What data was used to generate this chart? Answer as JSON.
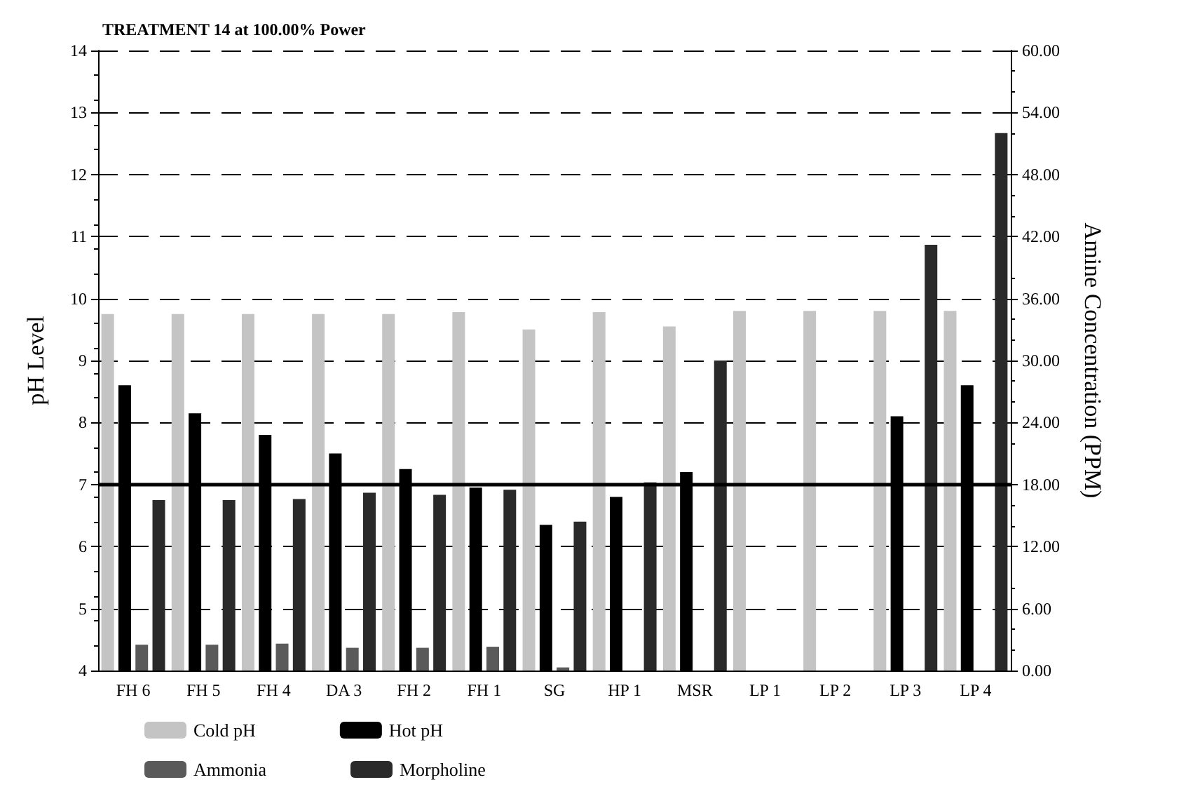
{
  "chart_data": {
    "type": "bar",
    "title": "TREATMENT 14 at 100.00% Power",
    "ylabel": "pH Level",
    "y2label": "Amine Concentration (PPM)",
    "categories": [
      "FH 6",
      "FH 5",
      "FH 4",
      "DA 3",
      "FH 2",
      "FH 1",
      "SG",
      "HP 1",
      "MSR",
      "LP 1",
      "LP 2",
      "LP 3",
      "LP 4"
    ],
    "series": [
      {
        "name": "Cold pH",
        "color": "#c4c4c4",
        "values": [
          9.75,
          9.75,
          9.75,
          9.75,
          9.75,
          9.78,
          9.5,
          9.78,
          9.55,
          9.8,
          9.8,
          9.8,
          9.8
        ]
      },
      {
        "name": "Hot pH",
        "color": "#000000",
        "values": [
          8.6,
          8.15,
          7.8,
          7.5,
          7.25,
          6.95,
          6.35,
          6.8,
          7.2,
          null,
          null,
          8.1,
          8.6
        ]
      },
      {
        "name": "Ammonia",
        "color": "#5a5a5a",
        "axis": "y2",
        "values": [
          2.5,
          2.5,
          2.6,
          2.2,
          2.2,
          2.3,
          0.3,
          null,
          null,
          null,
          null,
          null,
          null
        ]
      },
      {
        "name": "Morpholine",
        "color": "#2a2a2a",
        "axis": "y2",
        "values": [
          16.5,
          16.5,
          16.6,
          17.2,
          17,
          17.5,
          14.4,
          18.2,
          30,
          null,
          null,
          41.2,
          52
        ]
      }
    ],
    "ylim": [
      4,
      14
    ],
    "yticks": [
      4,
      5,
      6,
      7,
      8,
      9,
      10,
      11,
      12,
      13,
      14
    ],
    "y2lim": [
      0,
      60
    ],
    "y2ticks": [
      {
        "value": 0,
        "label": "0.00"
      },
      {
        "value": 6,
        "label": "6.00"
      },
      {
        "value": 12,
        "label": "12.00"
      },
      {
        "value": 18,
        "label": "18.00"
      },
      {
        "value": 24,
        "label": "24.00"
      },
      {
        "value": 30,
        "label": "30.00"
      },
      {
        "value": 36,
        "label": "36.00"
      },
      {
        "value": 42,
        "label": "42.00"
      },
      {
        "value": 48,
        "label": "48.00"
      },
      {
        "value": 54,
        "label": "54.00"
      },
      {
        "value": 60,
        "label": "60.00"
      }
    ],
    "ref_lines": [
      {
        "axis": "y",
        "value": 7,
        "color": "#000000",
        "line_style": "solid"
      }
    ],
    "grid": "y",
    "legend": "bottom left"
  }
}
